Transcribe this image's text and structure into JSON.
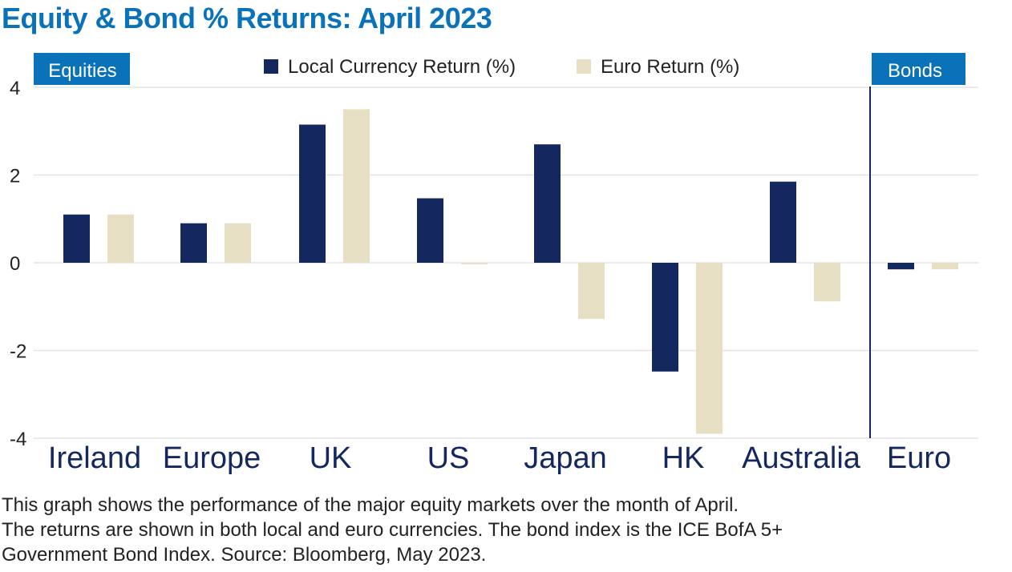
{
  "title": "Equity & Bond % Returns: April 2023",
  "panels": {
    "equities_label": "Equities",
    "bonds_label": "Bonds"
  },
  "footnote": {
    "line1": "This graph shows the performance of the major equity markets over the month of April.",
    "line2": "The returns are shown in both local and euro currencies. The bond index is the ICE BofA 5+",
    "line3": "Government Bond Index. Source: Bloomberg, May 2023."
  },
  "colors": {
    "title": "#0a72b8",
    "panel_label_bg": "#0a72b8",
    "local": "#14285f",
    "euro": "#e6dfc3",
    "grid": "#e3e3e3",
    "divider": "#14285f"
  },
  "chart_data": {
    "type": "bar",
    "categories": [
      "Ireland",
      "Europe",
      "UK",
      "US",
      "Japan",
      "HK",
      "Australia",
      "Euro"
    ],
    "groups": [
      "Equities",
      "Equities",
      "Equities",
      "Equities",
      "Equities",
      "Equities",
      "Equities",
      "Bonds"
    ],
    "series": [
      {
        "name": "Local Currency Return (%)",
        "color": "#14285f",
        "values": [
          1.1,
          0.9,
          3.15,
          1.47,
          2.7,
          -2.48,
          1.85,
          -0.15
        ]
      },
      {
        "name": "Euro Return (%)",
        "color": "#e6dfc3",
        "values": [
          1.1,
          0.9,
          3.5,
          -0.03,
          -1.28,
          -3.9,
          -0.88,
          -0.15
        ]
      }
    ],
    "ylim": [
      -4,
      4
    ],
    "yticks": [
      4,
      2,
      0,
      -2,
      -4
    ],
    "ytick_labels": [
      "4",
      "2",
      "0",
      "-2",
      "-4"
    ],
    "xlabel": "",
    "ylabel": "",
    "grid": true,
    "legend_position": "top-center"
  }
}
